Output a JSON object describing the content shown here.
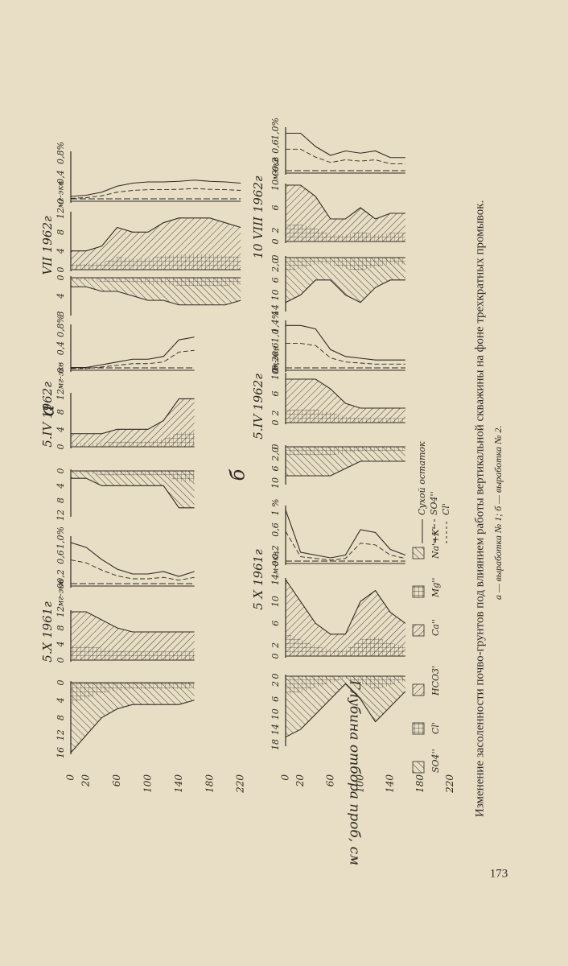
{
  "figure": {
    "axis_label": "Глубина отбора проб, см",
    "groups": [
      {
        "letter": "а",
        "depth_ticks": [
          0,
          20,
          60,
          100,
          140,
          180,
          220
        ],
        "dates": [
          {
            "title": "5.X 1961г",
            "depths": [
              0,
              20,
              40,
              60,
              80,
              100,
              120,
              140,
              160
            ],
            "anions": {
              "ticks": [
                0,
                4,
                8,
                12,
                16
              ],
              "lim": [
                0,
                16
              ],
              "values": [
                16,
                12,
                8,
                6,
                5,
                5,
                5,
                5,
                4
              ]
            },
            "ions": {
              "ticks": [
                0,
                4,
                8,
                12
              ],
              "unit": "мг-экв",
              "lim": [
                0,
                12
              ],
              "values": [
                12,
                12,
                10,
                8,
                7,
                7,
                7,
                7,
                7
              ]
            },
            "percent": {
              "ticks": [
                0,
                {
                  "value": 0.2,
                  "label": "0,2"
                },
                {
                  "value": 0.6,
                  "label": "0,6"
                },
                {
                  "value": 1.0,
                  "label": "1,0%"
                }
              ],
              "lim": [
                0,
                1
              ],
              "values": [
                0.9,
                0.8,
                0.55,
                0.35,
                0.25,
                0.25,
                0.3,
                0.2,
                0.3
              ]
            }
          },
          {
            "title": "5.IV 1962г",
            "depths": [
              0,
              20,
              40,
              60,
              80,
              100,
              120,
              140,
              160
            ],
            "anions": {
              "ticks": [
                0,
                4,
                8,
                12
              ],
              "lim": [
                0,
                12
              ],
              "values": [
                2,
                2,
                4,
                4,
                4,
                4,
                4,
                10,
                10
              ]
            },
            "ions": {
              "ticks": [
                0,
                4,
                8,
                12
              ],
              "unit": "мг-экв",
              "lim": [
                0,
                12
              ],
              "values": [
                3,
                3,
                3,
                4,
                4,
                4,
                6,
                11,
                11
              ]
            },
            "percent": {
              "ticks": [
                0,
                {
                  "value": 0.4,
                  "label": "0,4"
                },
                {
                  "value": 0.8,
                  "label": "0,8%"
                }
              ],
              "lim": [
                0,
                0.8
              ],
              "values": [
                0.05,
                0.05,
                0.1,
                0.15,
                0.2,
                0.2,
                0.25,
                0.55,
                0.6
              ]
            }
          },
          {
            "title": "VII 1962г",
            "depths": [
              0,
              20,
              40,
              60,
              80,
              100,
              120,
              140,
              160,
              180,
              200,
              220
            ],
            "anions": {
              "ticks": [
                0,
                4,
                8
              ],
              "lim": [
                0,
                8
              ],
              "values": [
                2,
                2,
                3,
                3,
                4,
                5,
                5,
                6,
                6,
                6,
                6,
                5
              ]
            },
            "ions": {
              "ticks": [
                0,
                4,
                8,
                12
              ],
              "unit": "мг-экв",
              "lim": [
                0,
                12
              ],
              "values": [
                4,
                4,
                5,
                9,
                8,
                8,
                10,
                11,
                11,
                11,
                10,
                9
              ]
            },
            "percent": {
              "ticks": [
                0,
                {
                  "value": 0.4,
                  "label": "0,4"
                },
                {
                  "value": 0.8,
                  "label": "0,8%"
                }
              ],
              "lim": [
                0,
                0.8
              ],
              "values": [
                0.08,
                0.1,
                0.15,
                0.25,
                0.3,
                0.32,
                0.32,
                0.33,
                0.35,
                0.33,
                0.32,
                0.3
              ]
            }
          }
        ]
      },
      {
        "letter": "б",
        "depth_ticks": [
          0,
          20,
          60,
          100,
          140,
          180,
          220
        ],
        "dates": [
          {
            "title": "5 X 1961г",
            "depths": [
              0,
              20,
              40,
              60,
              80,
              100,
              120,
              140,
              160
            ],
            "anions": {
              "ticks": [
                0,
                2,
                6,
                10,
                14,
                18
              ],
              "lim": [
                0,
                18
              ],
              "values": [
                16,
                14,
                10,
                6,
                2,
                6,
                12,
                8,
                4
              ]
            },
            "ions": {
              "ticks": [
                0,
                2,
                6,
                10,
                14
              ],
              "unit": "м-экв",
              "lim": [
                0,
                14
              ],
              "values": [
                14,
                10,
                6,
                4,
                4,
                10,
                12,
                8,
                6
              ]
            },
            "percent": {
              "ticks": [
                0,
                {
                  "value": 0.2,
                  "label": "0,2"
                },
                {
                  "value": 0.6,
                  "label": "0,6"
                },
                {
                  "value": 1,
                  "label": "1 %"
                }
              ],
              "lim": [
                0,
                1
              ],
              "values": [
                0.95,
                0.2,
                0.15,
                0.1,
                0.15,
                0.6,
                0.55,
                0.25,
                0.15
              ]
            }
          },
          {
            "title": "5.IV 1962г",
            "depths": [
              0,
              20,
              40,
              60,
              80,
              100,
              120,
              140,
              160
            ],
            "anions": {
              "ticks": [
                0,
                {
                  "value": 2,
                  "label": "2,0"
                },
                6,
                10
              ],
              "lim": [
                0,
                10
              ],
              "values": [
                8,
                8,
                8,
                8,
                6,
                4,
                4,
                4,
                4
              ]
            },
            "ions": {
              "ticks": [
                0,
                2,
                6,
                10
              ],
              "unit": "м-экв",
              "lim": [
                0,
                10
              ],
              "values": [
                9,
                9,
                9,
                7,
                4,
                3,
                3,
                3,
                3
              ]
            },
            "percent": {
              "ticks": [
                0,
                {
                  "value": 0.2,
                  "label": "0,2"
                },
                {
                  "value": 0.6,
                  "label": "0,6"
                },
                {
                  "value": 1.0,
                  "label": "1,0"
                },
                {
                  "value": 1.4,
                  "label": "1,4%"
                }
              ],
              "lim": [
                0,
                1.4
              ],
              "values": [
                1.3,
                1.3,
                1.2,
                0.6,
                0.4,
                0.35,
                0.3,
                0.3,
                0.3
              ]
            }
          },
          {
            "title": "10 VIII 1962г",
            "depths": [
              0,
              20,
              40,
              60,
              80,
              100,
              120,
              140,
              160
            ],
            "anions": {
              "ticks": [
                0,
                {
                  "value": 2,
                  "label": "2,0"
                },
                6,
                10,
                14
              ],
              "lim": [
                0,
                14
              ],
              "values": [
                12,
                10,
                6,
                6,
                10,
                12,
                8,
                6,
                6
              ]
            },
            "ions": {
              "ticks": [
                0,
                2,
                6,
                10
              ],
              "unit": "м-экв",
              "lim": [
                0,
                10
              ],
              "values": [
                10,
                10,
                8,
                4,
                4,
                6,
                4,
                5,
                5
              ]
            },
            "percent": {
              "ticks": [
                0,
                {
                  "value": 0.2,
                  "label": "0,2"
                },
                {
                  "value": 0.6,
                  "label": "0,6"
                },
                {
                  "value": 1.0,
                  "label": "1,0%"
                }
              ],
              "lim": [
                0,
                1
              ],
              "values": [
                0.9,
                0.9,
                0.6,
                0.4,
                0.5,
                0.45,
                0.5,
                0.35,
                0.35
              ]
            }
          }
        ]
      }
    ],
    "legend": {
      "hatches": [
        "SO4''",
        "Cl'",
        "HCO3'",
        "Ca''",
        "Mg''",
        "Na'+K'"
      ],
      "lines": [
        "Сухой остаток",
        "SO4''",
        "Cl'"
      ]
    }
  },
  "caption": "Изменение засоленности почво-грунтов под влиянием работы вертикальной скважины на фоне трехкратных промывок.",
  "subcaption": "а — выработка № 1; б — выработка № 2.",
  "page_number": "173"
}
